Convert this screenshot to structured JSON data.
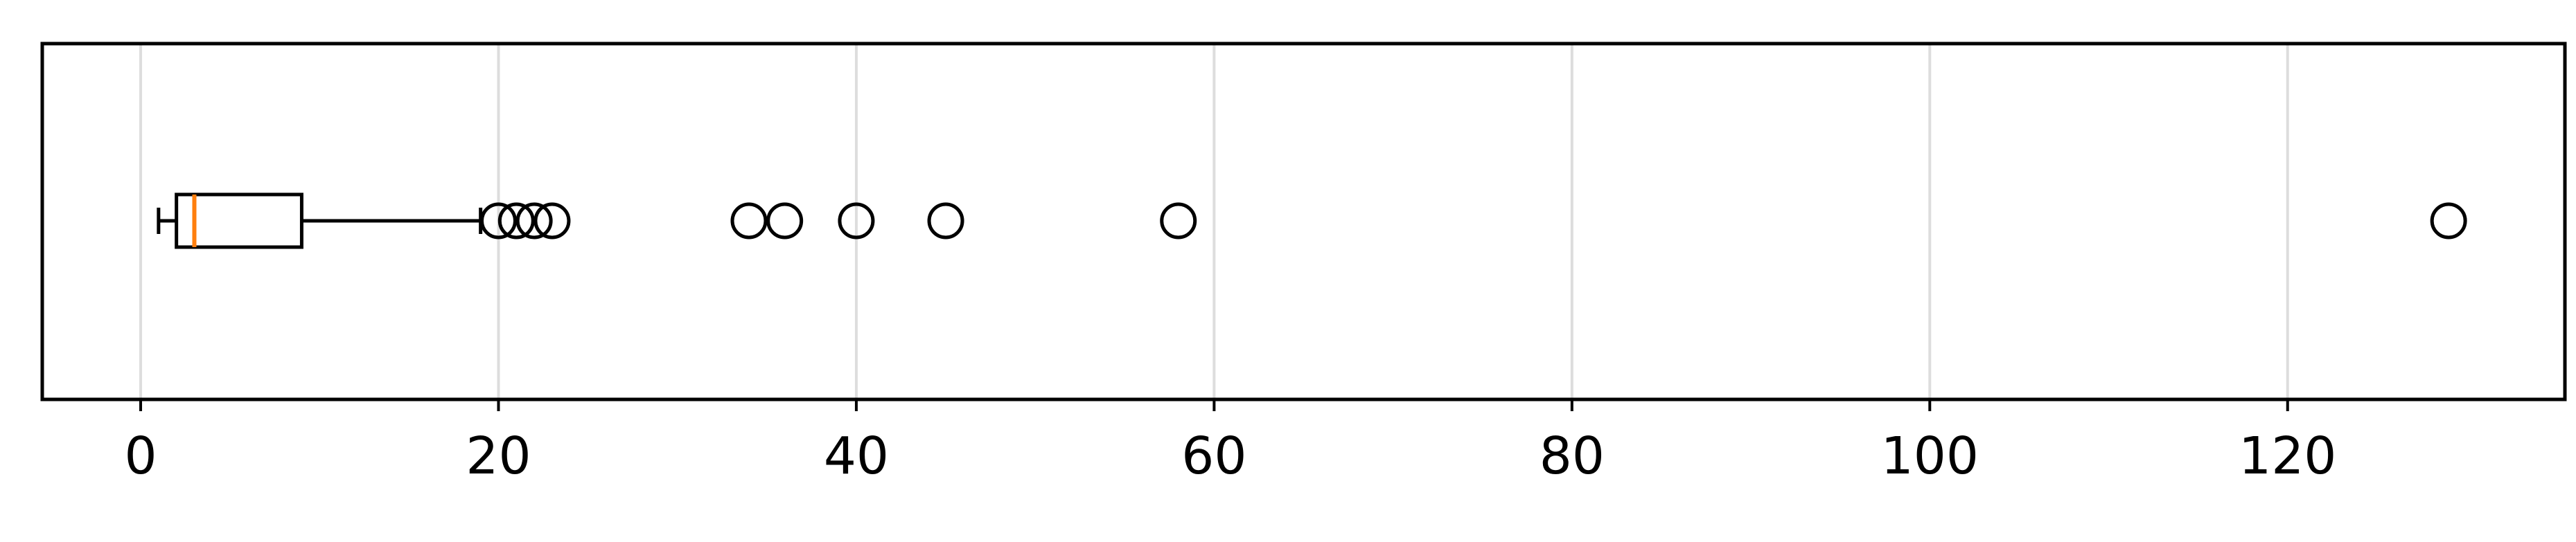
{
  "chart_data": {
    "type": "boxplot",
    "orientation": "horizontal",
    "title": "",
    "xlabel": "",
    "ylabel": "",
    "xlim": [
      -5.5,
      135.5
    ],
    "xticks": [
      0,
      20,
      40,
      60,
      80,
      100,
      120
    ],
    "xtick_labels": [
      "0",
      "20",
      "40",
      "60",
      "80",
      "100",
      "120"
    ],
    "grid": {
      "vertical": true,
      "horizontal": false
    },
    "box": {
      "whisker_low": 1,
      "q1": 2,
      "median": 3,
      "q3": 9,
      "whisker_high": 19
    },
    "outliers": [
      20,
      21,
      22,
      23,
      34,
      36,
      40,
      45,
      58,
      129
    ],
    "colors": {
      "box": "#000000",
      "median": "#ff7f0e",
      "grid": "#dddddd",
      "axes": "#000000"
    }
  }
}
